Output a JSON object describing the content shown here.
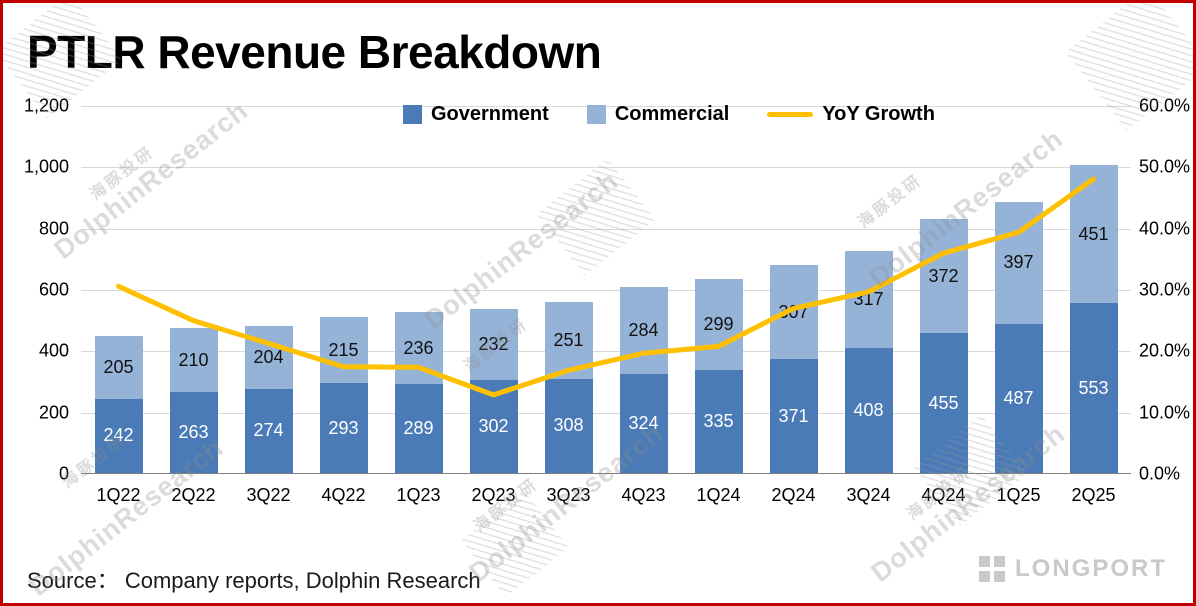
{
  "title": "PTLR Revenue Breakdown",
  "source_note": "Source： Company reports, Dolphin Research",
  "logo_text": "LONGPORT",
  "watermark": {
    "en": "DolphinResearch",
    "zh": "海豚投研"
  },
  "colors": {
    "government": "#4A7BB7",
    "commercial": "#95B3D7",
    "yoy_line": "#FFC000",
    "frame_border": "#C00000",
    "gridline": "#D9D9D9"
  },
  "legend": [
    {
      "label": "Government",
      "color": "#4A7BB7",
      "swatch": "square"
    },
    {
      "label": "Commercial",
      "color": "#95B3D7",
      "swatch": "square"
    },
    {
      "label": "YoY Growth",
      "color": "#FFC000",
      "swatch": "line"
    }
  ],
  "chart_data": {
    "type": "bar",
    "subtype": "stacked bars with secondary-axis line",
    "title": "PTLR Revenue Breakdown",
    "categories": [
      "1Q22",
      "2Q22",
      "3Q22",
      "4Q22",
      "1Q23",
      "2Q23",
      "3Q23",
      "4Q23",
      "1Q24",
      "2Q24",
      "3Q24",
      "4Q24",
      "1Q25",
      "2Q25"
    ],
    "series": [
      {
        "name": "Government",
        "type": "bar",
        "stack": true,
        "color": "#4A7BB7",
        "label_color": "#FFFFFF",
        "values": [
          242,
          263,
          274,
          293,
          289,
          302,
          308,
          324,
          335,
          371,
          408,
          455,
          487,
          553
        ]
      },
      {
        "name": "Commercial",
        "type": "bar",
        "stack": true,
        "color": "#95B3D7",
        "label_color": "#111111",
        "values": [
          205,
          210,
          204,
          215,
          236,
          232,
          251,
          284,
          299,
          307,
          317,
          372,
          397,
          451
        ]
      },
      {
        "name": "YoY Growth",
        "type": "line",
        "axis": "right",
        "color": "#FFC000",
        "values_pct": [
          30.6,
          25.0,
          21.3,
          17.5,
          17.4,
          12.9,
          16.9,
          19.7,
          20.8,
          27.0,
          29.7,
          36.0,
          39.4,
          48.1
        ]
      }
    ],
    "left_axis": {
      "min": 0,
      "max": 1200,
      "step": 200,
      "ticks": [
        "0",
        "200",
        "400",
        "600",
        "800",
        "1,000",
        "1,200"
      ]
    },
    "right_axis": {
      "min": 0,
      "max": 60,
      "step": 10,
      "ticks": [
        "0.0%",
        "10.0%",
        "20.0%",
        "30.0%",
        "40.0%",
        "50.0%",
        "60.0%"
      ]
    },
    "grid": true,
    "legend_position": "top-center"
  }
}
